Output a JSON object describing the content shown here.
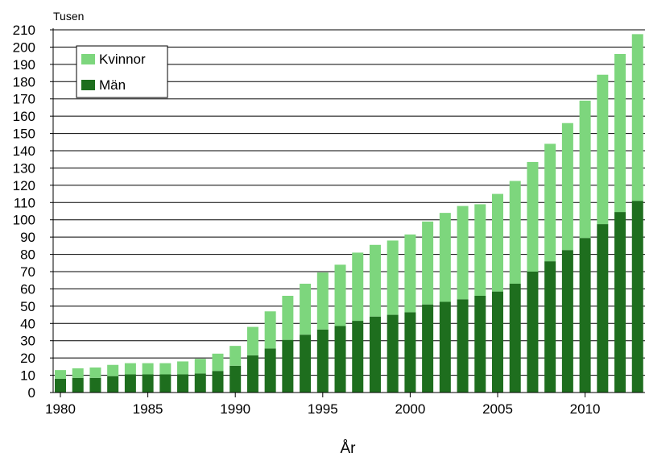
{
  "chart_data": {
    "type": "bar",
    "stacked": true,
    "unit_label": "Tusen",
    "xlabel": "År",
    "ylim": [
      0,
      210
    ],
    "y_ticks": [
      0,
      10,
      20,
      30,
      40,
      50,
      60,
      70,
      80,
      90,
      100,
      110,
      120,
      130,
      140,
      150,
      160,
      170,
      180,
      190,
      200,
      210
    ],
    "x_tick_labels": [
      "1980",
      "1985",
      "1990",
      "1995",
      "2000",
      "2005",
      "2010"
    ],
    "grid": true,
    "legend_position": "top-left",
    "categories": [
      "1980",
      "1981",
      "1982",
      "1983",
      "1984",
      "1985",
      "1986",
      "1987",
      "1988",
      "1989",
      "1990",
      "1991",
      "1992",
      "1993",
      "1994",
      "1995",
      "1996",
      "1997",
      "1998",
      "1999",
      "2000",
      "2001",
      "2002",
      "2003",
      "2004",
      "2005",
      "2006",
      "2007",
      "2008",
      "2009",
      "2010",
      "2011",
      "2012",
      "2013"
    ],
    "series": [
      {
        "name": "Män",
        "color": "#1e6e1e",
        "values": [
          8,
          8.5,
          8.5,
          9.5,
          10.5,
          10.5,
          10.5,
          10.5,
          11,
          12.5,
          15.5,
          21.5,
          25.5,
          30.5,
          33.5,
          36.5,
          38.5,
          41.5,
          44,
          45,
          46.5,
          51,
          52.5,
          54,
          56,
          58.5,
          63,
          70,
          76,
          82.5,
          89.5,
          97.5,
          104.5,
          111
        ]
      },
      {
        "name": "Kvinnor",
        "color": "#7dd67d",
        "values": [
          5,
          5.5,
          6,
          6.5,
          6.5,
          6.5,
          6.5,
          7.5,
          8.5,
          10,
          11.5,
          16.5,
          21.5,
          25.5,
          29.5,
          33,
          35.5,
          39.5,
          41.5,
          43,
          45,
          48,
          51.5,
          54,
          53,
          56.5,
          59.5,
          63.5,
          68,
          73.5,
          79.5,
          86.5,
          91.5,
          96.5
        ]
      }
    ]
  }
}
